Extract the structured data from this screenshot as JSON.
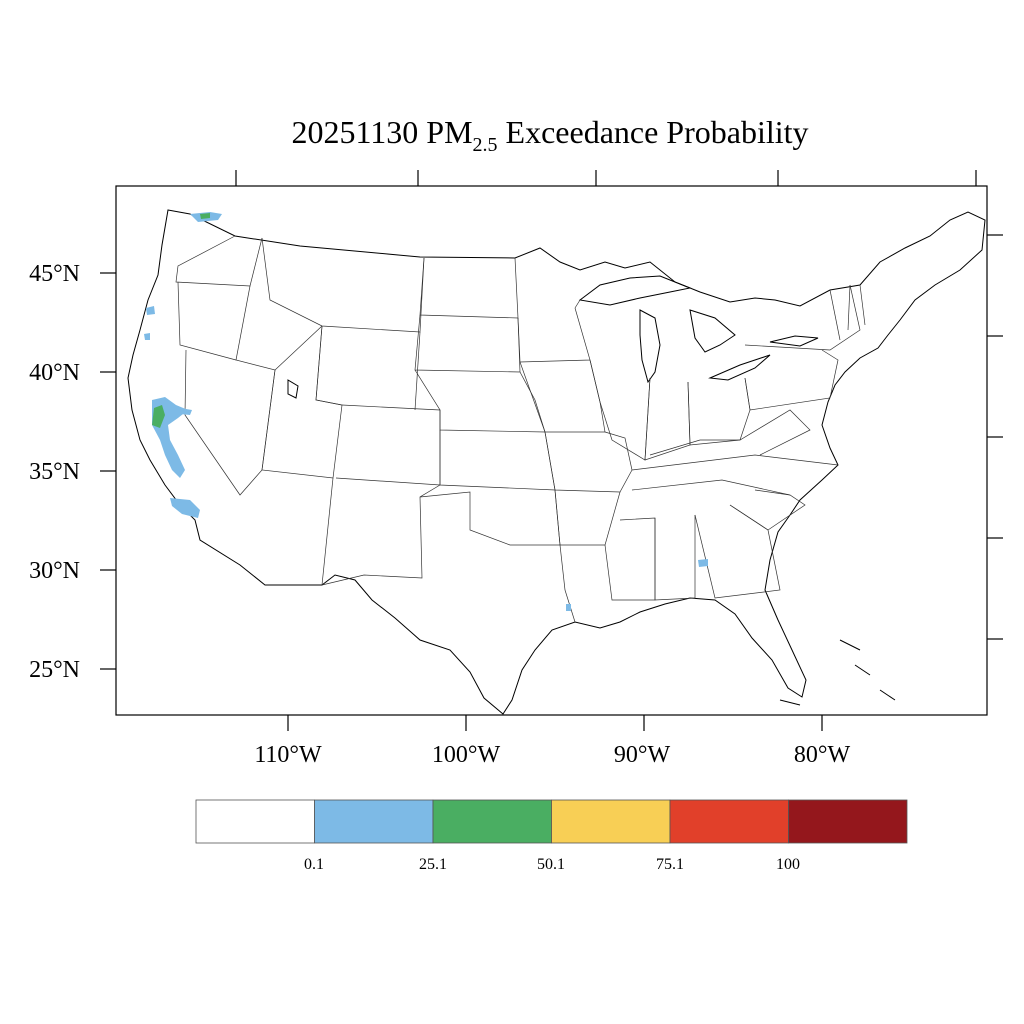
{
  "title": {
    "date": "20251130",
    "pm": "PM",
    "sub": "2.5",
    "rest": " Exceedance Probability"
  },
  "axes": {
    "lat_labels": [
      "45°N",
      "40°N",
      "35°N",
      "30°N",
      "25°N"
    ],
    "lon_labels": [
      "110°W",
      "100°W",
      "90°W",
      "80°W"
    ]
  },
  "colorbar": {
    "colors": [
      "#ffffff",
      "#7dbae6",
      "#4aae62",
      "#f8cf55",
      "#e1402a",
      "#94171c"
    ],
    "labels": [
      "0.1",
      "25.1",
      "50.1",
      "75.1",
      "100"
    ]
  },
  "colors": {
    "blue": "#7dbae6",
    "green": "#4aae62"
  }
}
